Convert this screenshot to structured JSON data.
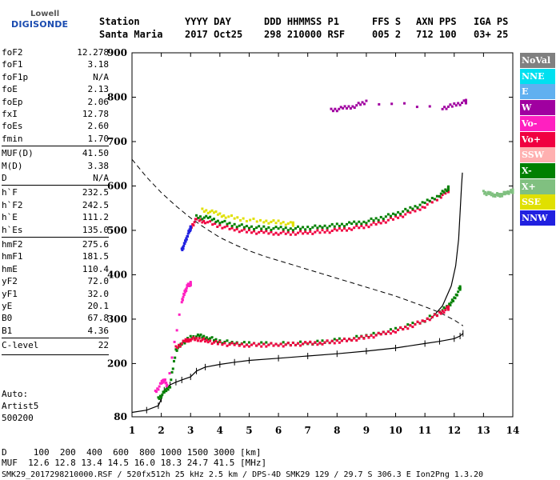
{
  "logo": {
    "top": "Lowell",
    "bottom": "DIGISONDE"
  },
  "header": {
    "labels": [
      "Station",
      "YYYY DAY",
      "DDD HHMMSS P1",
      "FFS S",
      "AXN PPS",
      "IGA PS"
    ],
    "values": [
      "Santa Maria",
      "2017 Oct25",
      "298 210000 RSF",
      "005 2",
      "712 100",
      "03+ 25"
    ]
  },
  "params": [
    {
      "name": "foF2",
      "value": "12.278"
    },
    {
      "name": "foF1",
      "value": "3.18"
    },
    {
      "name": "foF1p",
      "value": "N/A"
    },
    {
      "name": "foE",
      "value": "2.13"
    },
    {
      "name": "foEp",
      "value": "2.06"
    },
    {
      "name": "fxI",
      "value": "12.78"
    },
    {
      "name": "foEs",
      "value": "2.60"
    },
    {
      "name": "fmin",
      "value": "1.70"
    },
    {
      "name": "MUF(D)",
      "value": "41.50"
    },
    {
      "name": "M(D)",
      "value": "3.38"
    },
    {
      "name": "D",
      "value": "N/A"
    },
    {
      "name": "h`F",
      "value": "232.5"
    },
    {
      "name": "h`F2",
      "value": "242.5"
    },
    {
      "name": "h`E",
      "value": "111.2"
    },
    {
      "name": "h`Es",
      "value": "135.0"
    },
    {
      "name": "hmF2",
      "value": "275.6"
    },
    {
      "name": "hmF1",
      "value": "181.5"
    },
    {
      "name": "hmE",
      "value": "110.4"
    },
    {
      "name": "yF2",
      "value": "72.0"
    },
    {
      "name": "yF1",
      "value": "32.0"
    },
    {
      "name": "yE",
      "value": "20.1"
    },
    {
      "name": "B0",
      "value": "67.8"
    },
    {
      "name": "B1",
      "value": "4.36"
    },
    {
      "name": "C-level",
      "value": "22"
    }
  ],
  "autoscale": {
    "line1": "Auto:",
    "line2": "Artist5",
    "line3": "500200"
  },
  "footer": {
    "distance_line": "D     100  200  400  600  800 1000 1500 3000 [km]",
    "muf_line": "MUF  12.6 12.8 13.4 14.5 16.0 18.3 24.7 41.5 [MHz]",
    "file_line": "SMK29_2017298210000.RSF / 520fx512h 25 kHz 2.5 km / DPS-4D SMK29 129 / 29.7 S 306.3 E Ion2Png 1.3.20"
  },
  "legend": [
    {
      "label": "NoVal",
      "bg": "#808080",
      "fg": "#ffffff"
    },
    {
      "label": "NNE",
      "bg": "#00e0f0",
      "fg": "#ffffff"
    },
    {
      "label": "E",
      "bg": "#60b0f0",
      "fg": "#ffffff"
    },
    {
      "label": "W",
      "bg": "#a000a0",
      "fg": "#ffffff"
    },
    {
      "label": "Vo-",
      "bg": "#ff20c0",
      "fg": "#ffffff"
    },
    {
      "label": "Vo+",
      "bg": "#f00040",
      "fg": "#ffffff"
    },
    {
      "label": "SSW",
      "bg": "#ffb0b0",
      "fg": "#ffffff"
    },
    {
      "label": "X-",
      "bg": "#008000",
      "fg": "#ffffff"
    },
    {
      "label": "X+",
      "bg": "#80c080",
      "fg": "#ffffff"
    },
    {
      "label": "SSE",
      "bg": "#e0e000",
      "fg": "#ffffff"
    },
    {
      "label": "NNW",
      "bg": "#2020e0",
      "fg": "#ffffff"
    }
  ],
  "chart_data": {
    "type": "scatter",
    "xlim": [
      1,
      14
    ],
    "ylim": [
      80,
      900
    ],
    "xticks": [
      "1",
      "2",
      "3",
      "4",
      "5",
      "6",
      "7",
      "8",
      "9",
      "10",
      "11",
      "12",
      "13",
      "14"
    ],
    "yticks": [
      "80",
      "200",
      "300",
      "400",
      "500",
      "600",
      "700",
      "800",
      "900"
    ],
    "series": [
      {
        "color": "#008000",
        "points": [
          [
            1.9,
            120
          ],
          [
            2.1,
            135
          ],
          [
            2.3,
            150
          ],
          [
            2.5,
            230
          ],
          [
            2.7,
            245
          ],
          [
            3.0,
            258
          ],
          [
            3.3,
            262
          ],
          [
            3.6,
            258
          ],
          [
            4.0,
            250
          ],
          [
            4.5,
            246
          ],
          [
            5.0,
            244
          ],
          [
            5.5,
            244
          ],
          [
            6.0,
            244
          ],
          [
            6.5,
            245
          ],
          [
            7.0,
            246
          ],
          [
            7.5,
            248
          ],
          [
            8.0,
            252
          ],
          [
            8.5,
            256
          ],
          [
            9.0,
            262
          ],
          [
            9.5,
            268
          ],
          [
            10.0,
            276
          ],
          [
            10.5,
            286
          ],
          [
            11.0,
            298
          ],
          [
            11.5,
            315
          ],
          [
            11.8,
            330
          ],
          [
            12.0,
            345
          ],
          [
            12.2,
            370
          ]
        ]
      },
      {
        "color": "#f00040",
        "points": [
          [
            2.5,
            235
          ],
          [
            2.8,
            250
          ],
          [
            3.0,
            255
          ],
          [
            3.3,
            255
          ],
          [
            3.6,
            250
          ],
          [
            4.0,
            245
          ],
          [
            4.5,
            242
          ],
          [
            5.0,
            242
          ],
          [
            5.5,
            242
          ],
          [
            6.0,
            242
          ],
          [
            6.5,
            243
          ],
          [
            7.0,
            245
          ],
          [
            7.5,
            247
          ],
          [
            8.0,
            250
          ],
          [
            8.5,
            254
          ],
          [
            9.0,
            259
          ],
          [
            9.5,
            266
          ],
          [
            10.0,
            274
          ],
          [
            10.5,
            284
          ],
          [
            11.0,
            297
          ],
          [
            11.5,
            312
          ],
          [
            11.8,
            325
          ]
        ]
      },
      {
        "color": "#f00040",
        "points": [
          [
            3.0,
            505
          ],
          [
            3.2,
            525
          ],
          [
            3.5,
            520
          ],
          [
            4.0,
            510
          ],
          [
            4.5,
            502
          ],
          [
            5.0,
            497
          ],
          [
            5.5,
            495
          ],
          [
            6.0,
            494
          ],
          [
            6.5,
            494
          ],
          [
            7.0,
            495
          ],
          [
            7.5,
            497
          ],
          [
            8.0,
            500
          ],
          [
            8.5,
            505
          ],
          [
            9.0,
            510
          ],
          [
            9.5,
            518
          ],
          [
            10.0,
            528
          ],
          [
            10.5,
            540
          ],
          [
            11.0,
            555
          ],
          [
            11.5,
            575
          ],
          [
            11.8,
            590
          ]
        ]
      },
      {
        "color": "#008000",
        "points": [
          [
            3.2,
            530
          ],
          [
            3.6,
            528
          ],
          [
            4.0,
            520
          ],
          [
            4.5,
            512
          ],
          [
            5.0,
            507
          ],
          [
            5.5,
            505
          ],
          [
            6.0,
            504
          ],
          [
            6.5,
            504
          ],
          [
            7.0,
            506
          ],
          [
            7.5,
            508
          ],
          [
            8.0,
            511
          ],
          [
            8.5,
            515
          ],
          [
            9.0,
            520
          ],
          [
            9.5,
            528
          ],
          [
            10.0,
            537
          ],
          [
            10.5,
            548
          ],
          [
            11.0,
            562
          ],
          [
            11.5,
            580
          ],
          [
            11.8,
            595
          ]
        ]
      },
      {
        "color": "#e0e000",
        "points": [
          [
            3.4,
            545
          ],
          [
            3.8,
            540
          ],
          [
            4.2,
            532
          ],
          [
            4.8,
            525
          ],
          [
            5.5,
            520
          ],
          [
            6.0,
            518
          ],
          [
            6.5,
            514
          ]
        ]
      },
      {
        "color": "#2020e0",
        "points": [
          [
            2.7,
            455
          ],
          [
            2.8,
            470
          ],
          [
            2.9,
            490
          ],
          [
            3.0,
            505
          ]
        ]
      },
      {
        "color": "#ff20c0",
        "points": [
          [
            1.8,
            135
          ],
          [
            2.0,
            155
          ],
          [
            2.1,
            165
          ],
          [
            2.2,
            150
          ],
          [
            2.7,
            340
          ],
          [
            2.8,
            360
          ],
          [
            2.9,
            375
          ],
          [
            3.0,
            380
          ]
        ]
      },
      {
        "color": "#80c080",
        "points": [
          [
            13.0,
            585
          ],
          [
            13.2,
            582
          ],
          [
            13.4,
            580
          ],
          [
            13.6,
            580
          ],
          [
            13.8,
            585
          ],
          [
            14.0,
            588
          ]
        ]
      },
      {
        "color": "#a000a0",
        "points": [
          [
            7.8,
            770
          ],
          [
            8.2,
            775
          ],
          [
            8.6,
            780
          ],
          [
            9.0,
            790
          ],
          [
            11.6,
            775
          ],
          [
            12.0,
            782
          ],
          [
            12.4,
            790
          ]
        ]
      }
    ],
    "profile": [
      [
        1.0,
        90
      ],
      [
        1.5,
        95
      ],
      [
        1.9,
        105
      ],
      [
        2.0,
        120
      ],
      [
        2.1,
        140
      ],
      [
        2.3,
        152
      ],
      [
        2.5,
        158
      ],
      [
        2.7,
        163
      ],
      [
        3.0,
        170
      ],
      [
        3.2,
        183
      ],
      [
        3.5,
        192
      ],
      [
        4.0,
        198
      ],
      [
        4.5,
        203
      ],
      [
        5.0,
        207
      ],
      [
        6.0,
        212
      ],
      [
        7.0,
        217
      ],
      [
        8.0,
        222
      ],
      [
        9.0,
        228
      ],
      [
        10.0,
        235
      ],
      [
        11.0,
        245
      ],
      [
        11.5,
        250
      ],
      [
        12.0,
        256
      ],
      [
        12.2,
        262
      ],
      [
        12.3,
        268
      ]
    ],
    "trace": [
      [
        11.2,
        300
      ],
      [
        11.6,
        330
      ],
      [
        11.9,
        375
      ],
      [
        12.05,
        420
      ],
      [
        12.15,
        480
      ],
      [
        12.2,
        540
      ],
      [
        12.25,
        600
      ],
      [
        12.28,
        630
      ]
    ],
    "dashed": [
      [
        1.0,
        660
      ],
      [
        1.5,
        620
      ],
      [
        2.0,
        585
      ],
      [
        2.5,
        555
      ],
      [
        3.0,
        528
      ],
      [
        3.5,
        505
      ],
      [
        4.0,
        484
      ],
      [
        4.5,
        468
      ],
      [
        5.0,
        454
      ],
      [
        5.5,
        442
      ],
      [
        6.0,
        432
      ],
      [
        6.5,
        422
      ],
      [
        7.0,
        412
      ],
      [
        7.5,
        402
      ],
      [
        8.0,
        392
      ],
      [
        8.5,
        382
      ],
      [
        9.0,
        372
      ],
      [
        9.5,
        362
      ],
      [
        10.0,
        352
      ],
      [
        10.5,
        340
      ],
      [
        11.0,
        328
      ],
      [
        11.5,
        315
      ],
      [
        12.0,
        298
      ],
      [
        12.3,
        285
      ]
    ]
  }
}
